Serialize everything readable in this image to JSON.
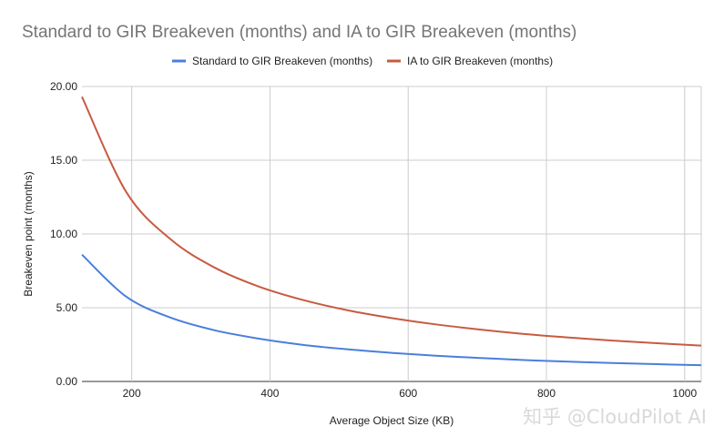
{
  "chart_data": {
    "type": "line",
    "title": "Standard to GIR Breakeven (months) and IA to GIR Breakeven (months)",
    "xlabel": "Average Object Size (KB)",
    "ylabel": "Breakeven point (months)",
    "xlim": [
      128,
      1024
    ],
    "ylim": [
      0,
      20
    ],
    "xticks": [
      200,
      400,
      600,
      800,
      1000
    ],
    "xtick_labels": [
      "200",
      "400",
      "600",
      "800",
      "1000"
    ],
    "yticks": [
      0,
      5,
      10,
      15,
      20
    ],
    "ytick_labels": [
      "0.00",
      "5.00",
      "10.00",
      "15.00",
      "20.00"
    ],
    "grid": true,
    "legend_position": "top-center",
    "x": [
      128,
      192,
      256,
      320,
      384,
      448,
      512,
      576,
      640,
      704,
      768,
      832,
      896,
      960,
      1024
    ],
    "series": [
      {
        "name": "Standard to GIR Breakeven (months)",
        "color": "#4a7fdb",
        "values": [
          8.6,
          5.75,
          4.33,
          3.47,
          2.9,
          2.48,
          2.18,
          1.94,
          1.74,
          1.59,
          1.45,
          1.34,
          1.25,
          1.17,
          1.1
        ]
      },
      {
        "name": "IA to GIR Breakeven (months)",
        "color": "#c75b41",
        "values": [
          19.3,
          12.85,
          9.65,
          7.72,
          6.43,
          5.52,
          4.83,
          4.3,
          3.87,
          3.52,
          3.22,
          2.98,
          2.77,
          2.59,
          2.43
        ]
      }
    ]
  },
  "watermark": "知乎 @CloudPilot AI"
}
